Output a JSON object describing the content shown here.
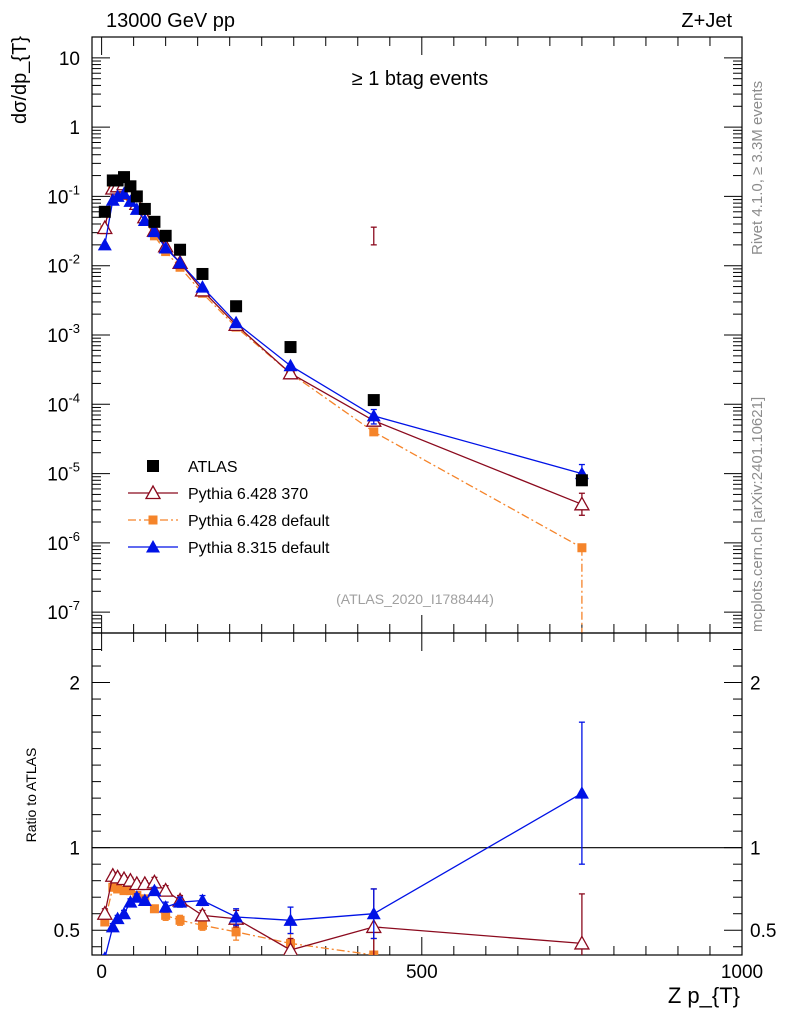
{
  "header": {
    "energy_label": "13000 GeV pp",
    "process_label": "Z+Jet"
  },
  "side_text": {
    "rivet": "Rivet 4.1.0, ≥ 3.3M events",
    "mcplots": "mcplots.cern.ch [arXiv:2401.10621]"
  },
  "colors": {
    "data": "#000000",
    "p6_370": "#8b0a1e",
    "p6_default": "#f5842a",
    "p8_default": "#0012e6",
    "analysis_id": "#a0a0a0"
  },
  "chart_data": [
    {
      "id": "main",
      "type": "scatter",
      "title": "≥ 1 btag events",
      "ylabel": "dσ/dp_{T}",
      "yscale": "log",
      "ylim": [
        5e-08,
        20
      ],
      "xlim": [
        -15,
        1000
      ],
      "analysis_id": "(ATLAS_2020_I1788444)",
      "y_ticks": [
        {
          "value": 10,
          "label": "10"
        },
        {
          "value": 1,
          "label": "1"
        },
        {
          "value": 0.1,
          "base": "10",
          "exp": "-1"
        },
        {
          "value": 0.01,
          "base": "10",
          "exp": "-2"
        },
        {
          "value": 0.001,
          "base": "10",
          "exp": "-3"
        },
        {
          "value": 0.0001,
          "base": "10",
          "exp": "-4"
        },
        {
          "value": 1e-05,
          "base": "10",
          "exp": "-5"
        },
        {
          "value": 1e-06,
          "base": "10",
          "exp": "-6"
        },
        {
          "value": 1e-07,
          "base": "10",
          "exp": "-7"
        }
      ],
      "legend_position": "bottom-left",
      "series": [
        {
          "key": "data",
          "name": "ATLAS",
          "marker": "square-filled",
          "line": "none",
          "x": [
            5,
            17.5,
            25,
            35,
            45,
            55,
            67.5,
            82.5,
            100,
            122.5,
            157.5,
            210,
            295,
            425,
            750
          ],
          "y": [
            0.06,
            0.17,
            0.17,
            0.19,
            0.14,
            0.1,
            0.066,
            0.043,
            0.027,
            0.017,
            0.0076,
            0.0026,
            0.00067,
            0.000115,
            8e-06
          ]
        },
        {
          "key": "p6_370",
          "name": "Pythia 6.428 370",
          "marker": "triangle-open",
          "line": "solid",
          "x": [
            5,
            17.5,
            25,
            35,
            45,
            55,
            67.5,
            82.5,
            100,
            122.5,
            157.5,
            210,
            295,
            425,
            750
          ],
          "y": [
            0.035,
            0.13,
            0.14,
            0.15,
            0.11,
            0.078,
            0.05,
            0.032,
            0.019,
            0.011,
            0.0044,
            0.0014,
            0.00028,
            5.8e-05,
            3.6e-06
          ],
          "err_y": [
            [
              0.02,
              0.036
            ],
            [
              2.5e-06,
              5.2e-06
            ]
          ],
          "err_x": [
            425,
            750
          ]
        },
        {
          "key": "p6_default",
          "name": "Pythia 6.428 default",
          "marker": "square-filled-small",
          "line": "dashdot",
          "x": [
            5,
            17.5,
            25,
            35,
            45,
            55,
            67.5,
            82.5,
            100,
            122.5,
            157.5,
            210,
            295,
            425,
            750
          ],
          "y": [
            0.033,
            0.125,
            0.13,
            0.14,
            0.1,
            0.07,
            0.046,
            0.027,
            0.016,
            0.0095,
            0.004,
            0.0013,
            0.00028,
            4e-05,
            8.5e-07
          ]
        },
        {
          "key": "p8_default",
          "name": "Pythia 8.315 default",
          "marker": "triangle-filled",
          "line": "solid",
          "x": [
            5,
            17.5,
            25,
            35,
            45,
            55,
            67.5,
            82.5,
            100,
            122.5,
            157.5,
            210,
            295,
            425,
            750
          ],
          "y": [
            0.02,
            0.088,
            0.1,
            0.11,
            0.085,
            0.065,
            0.045,
            0.031,
            0.018,
            0.011,
            0.0049,
            0.0015,
            0.00036,
            6.8e-05,
            1e-05
          ],
          "err_y": [
            [
              5.2e-05,
              8.4e-05
            ],
            [
              7.5e-06,
              1.35e-05
            ]
          ],
          "err_x": [
            425,
            750
          ]
        }
      ]
    },
    {
      "id": "ratio",
      "type": "line",
      "ylabel": "Ratio to ATLAS",
      "xlabel": "Z p_{T}",
      "ylim": [
        0.35,
        2.3
      ],
      "xlim": [
        -15,
        1000
      ],
      "reference_line": 1,
      "x_tick_labels": [
        {
          "value": 0,
          "label": "0"
        },
        {
          "value": 500,
          "label": "500"
        },
        {
          "value": 1000,
          "label": "1000"
        }
      ],
      "y_tick_labels": [
        {
          "value": 0.5,
          "label": "0.5"
        },
        {
          "value": 1,
          "label": "1"
        },
        {
          "value": 2,
          "label": "2"
        }
      ],
      "series": [
        {
          "key": "p6_370",
          "name": "Pythia 6.428 370",
          "x": [
            5,
            17.5,
            25,
            35,
            45,
            55,
            67.5,
            82.5,
            100,
            122.5,
            157.5,
            210,
            295,
            425,
            750
          ],
          "y": [
            0.6,
            0.83,
            0.82,
            0.81,
            0.8,
            0.78,
            0.78,
            0.79,
            0.74,
            0.68,
            0.59,
            0.57,
            0.38,
            0.52,
            0.42
          ],
          "err": [
            0.03,
            0.02,
            0.02,
            0.02,
            0.02,
            0.02,
            0.02,
            0.03,
            0.03,
            0.03,
            0.03,
            0.05,
            0.07,
            0.23,
            0.3
          ]
        },
        {
          "key": "p6_default",
          "name": "Pythia 6.428 default",
          "x": [
            5,
            17.5,
            25,
            35,
            45,
            55,
            67.5,
            82.5,
            100,
            122.5,
            157.5,
            210,
            295,
            425
          ],
          "y": [
            0.55,
            0.76,
            0.75,
            0.74,
            0.74,
            0.71,
            0.69,
            0.63,
            0.59,
            0.56,
            0.53,
            0.49,
            0.42,
            0.35
          ],
          "err": [
            0.02,
            0.02,
            0.02,
            0.02,
            0.02,
            0.02,
            0.02,
            0.02,
            0.03,
            0.03,
            0.03,
            0.05,
            0.06,
            0.1
          ]
        },
        {
          "key": "p8_default",
          "name": "Pythia 8.315 default",
          "x": [
            5,
            17.5,
            25,
            35,
            45,
            55,
            67.5,
            82.5,
            100,
            122.5,
            157.5,
            210,
            295,
            425,
            750
          ],
          "y": [
            0.33,
            0.52,
            0.57,
            0.6,
            0.67,
            0.7,
            0.68,
            0.74,
            0.64,
            0.67,
            0.68,
            0.58,
            0.56,
            0.6,
            1.33
          ],
          "err": [
            0.02,
            0.02,
            0.02,
            0.02,
            0.02,
            0.02,
            0.02,
            0.02,
            0.03,
            0.03,
            0.03,
            0.05,
            0.08,
            0.15,
            0.43
          ]
        }
      ]
    }
  ]
}
